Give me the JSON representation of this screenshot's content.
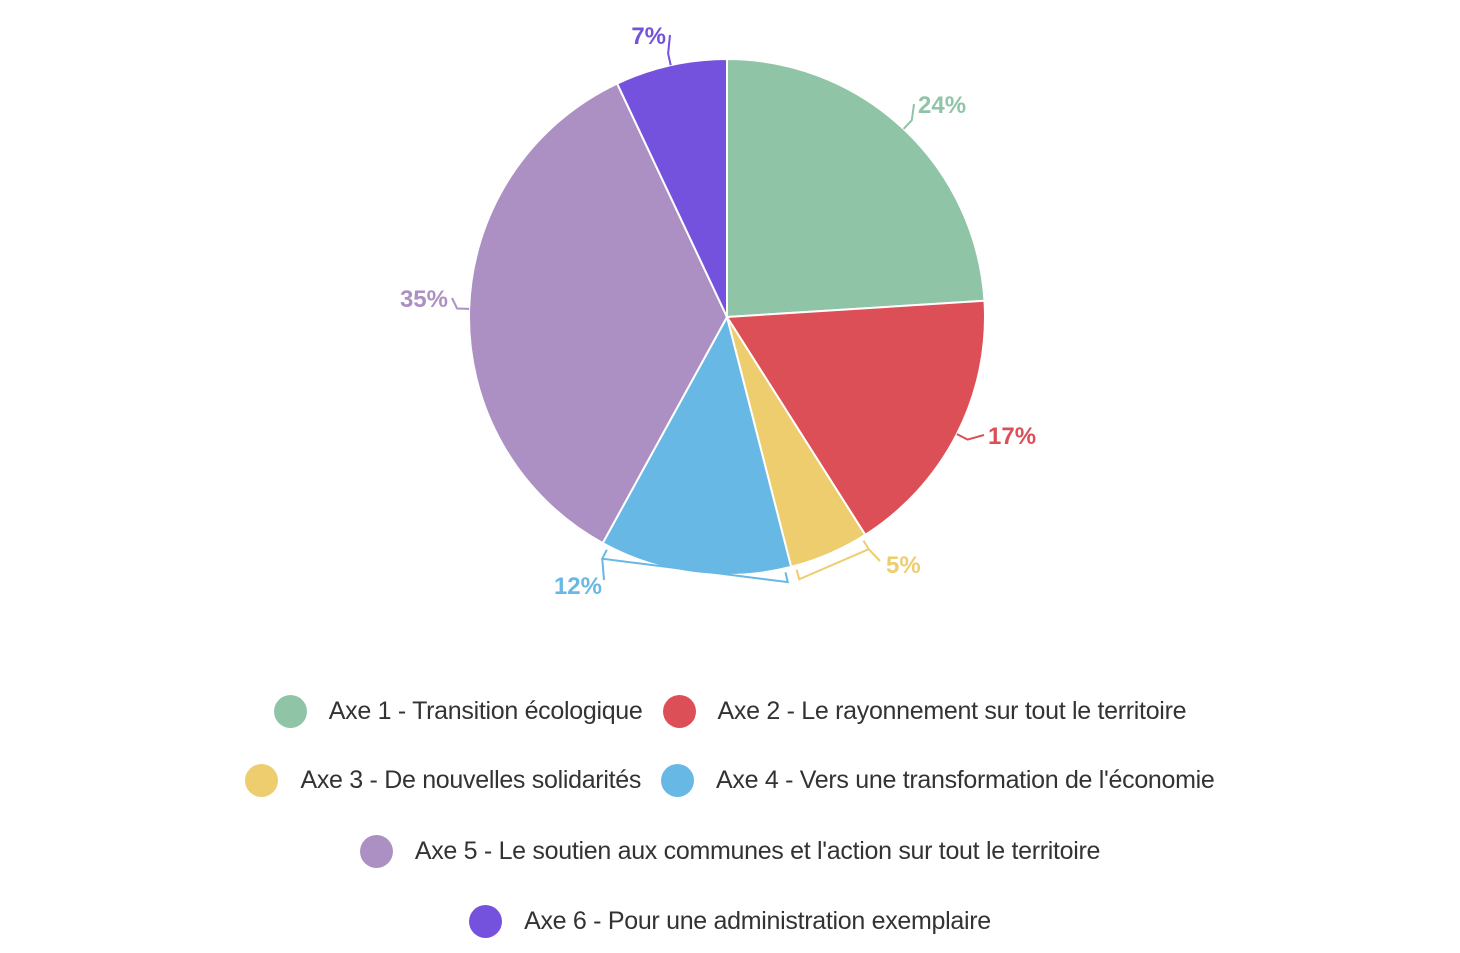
{
  "chart_data": {
    "type": "pie",
    "title": "",
    "categories": [
      "Axe 1 - Transition écologique",
      "Axe 2 - Le rayonnement sur tout le territoire",
      "Axe 3 - De nouvelles solidarités",
      "Axe 4 - Vers une transformation de l'économie",
      "Axe 5 - Le soutien aux communes et l'action sur tout le territoire",
      "Axe 6 - Pour une administration exemplaire"
    ],
    "values": [
      24,
      17,
      5,
      12,
      35,
      7
    ],
    "labels": [
      "24%",
      "17%",
      "5%",
      "12%",
      "35%",
      "7%"
    ],
    "colors": [
      "#8fc4a7",
      "#dc4f56",
      "#edcd6e",
      "#67b8e5",
      "#ac90c4",
      "#7452dd"
    ],
    "legend_position": "bottom"
  },
  "legend": {
    "rows": [
      [
        0,
        1
      ],
      [
        2,
        3
      ],
      [
        4
      ],
      [
        5
      ]
    ]
  }
}
